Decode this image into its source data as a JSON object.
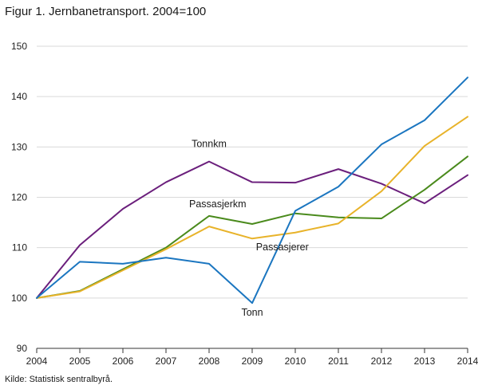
{
  "title": "Figur 1. Jernbanetransport. 2004=100",
  "source": "Kilde: Statistisk sentralbyrå.",
  "chart_data": {
    "type": "line",
    "x": [
      2004,
      2005,
      2006,
      2007,
      2008,
      2009,
      2010,
      2011,
      2012,
      2013,
      2014
    ],
    "xlim": [
      2004,
      2014
    ],
    "ylim": [
      90,
      150
    ],
    "yticks": [
      90,
      100,
      110,
      120,
      130,
      140,
      150
    ],
    "grid": "horizontal",
    "legend": "none",
    "series": [
      {
        "name": "Tonnkm",
        "color": "#6b1f7c",
        "values": [
          100,
          110.5,
          117.7,
          123.0,
          127.1,
          123.0,
          122.9,
          125.6,
          122.7,
          118.8,
          124.4
        ]
      },
      {
        "name": "Passasjerkm",
        "color": "#4a8a1c",
        "values": [
          100,
          101.4,
          105.7,
          110.0,
          116.3,
          114.7,
          116.8,
          116.0,
          115.8,
          121.5,
          128.1
        ]
      },
      {
        "name": "Passasjerer",
        "color": "#e8b32a",
        "values": [
          100,
          101.3,
          105.5,
          109.7,
          114.2,
          111.8,
          113.0,
          114.8,
          121.2,
          130.2,
          136.0
        ]
      },
      {
        "name": "Tonn",
        "color": "#1b76c0",
        "values": [
          100,
          107.2,
          106.8,
          108.0,
          106.8,
          99.0,
          117.3,
          122.1,
          130.5,
          135.3,
          143.8
        ]
      }
    ],
    "annotations": [
      {
        "text": "Tonnkm",
        "x": 2008,
        "y": 130
      },
      {
        "text": "Passasjerkm",
        "x": 2008.2,
        "y": 118
      },
      {
        "text": "Passasjerer",
        "x": 2009.7,
        "y": 109.5
      },
      {
        "text": "Tonn",
        "x": 2009.0,
        "y": 96.5
      }
    ]
  }
}
